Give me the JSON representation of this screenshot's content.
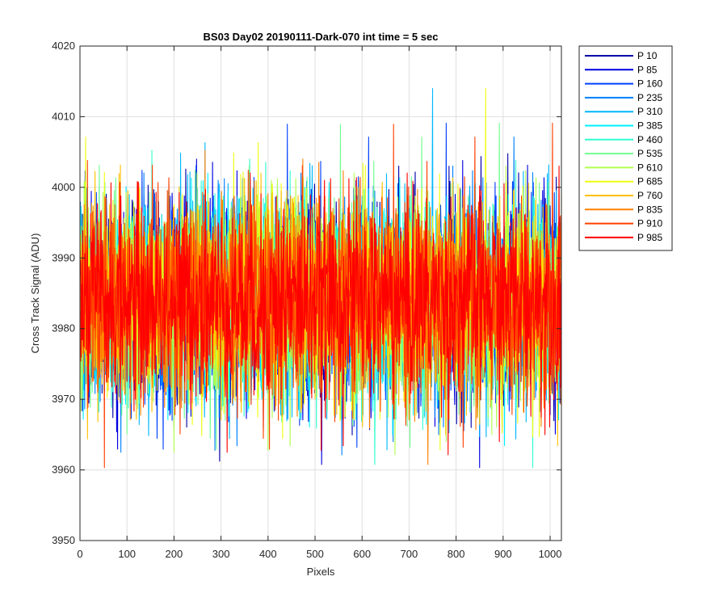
{
  "chart_data": {
    "type": "line",
    "title": "BS03 Day02 20190111-Dark-070 int time = 5 sec",
    "xlabel": "Pixels",
    "ylabel": "Cross Track Signal (ADU)",
    "xlim": [
      0,
      1024
    ],
    "ylim": [
      3950,
      4020
    ],
    "xticks": [
      0,
      100,
      200,
      300,
      400,
      500,
      600,
      700,
      800,
      900,
      1000
    ],
    "yticks": [
      3950,
      3960,
      3970,
      3980,
      3990,
      4000,
      4010,
      4020
    ],
    "grid": true,
    "legend_position": "outside-top-right",
    "noise_model": {
      "points_per_series": 1024,
      "mean": 3984,
      "std": 7
    },
    "series": [
      {
        "name": "P 10",
        "color": "#0000a8"
      },
      {
        "name": "P 85",
        "color": "#0000e0"
      },
      {
        "name": "P 160",
        "color": "#0040ff"
      },
      {
        "name": "P 235",
        "color": "#0080ff"
      },
      {
        "name": "P 310",
        "color": "#00b8ff"
      },
      {
        "name": "P 385",
        "color": "#00f0ff"
      },
      {
        "name": "P 460",
        "color": "#30ffd0"
      },
      {
        "name": "P 535",
        "color": "#70ff90"
      },
      {
        "name": "P 610",
        "color": "#b0ff50"
      },
      {
        "name": "P 685",
        "color": "#f0ff10"
      },
      {
        "name": "P 760",
        "color": "#ffc000"
      },
      {
        "name": "P 835",
        "color": "#ff8000"
      },
      {
        "name": "P 910",
        "color": "#ff4000"
      },
      {
        "name": "P 985",
        "color": "#ff0000"
      }
    ]
  }
}
